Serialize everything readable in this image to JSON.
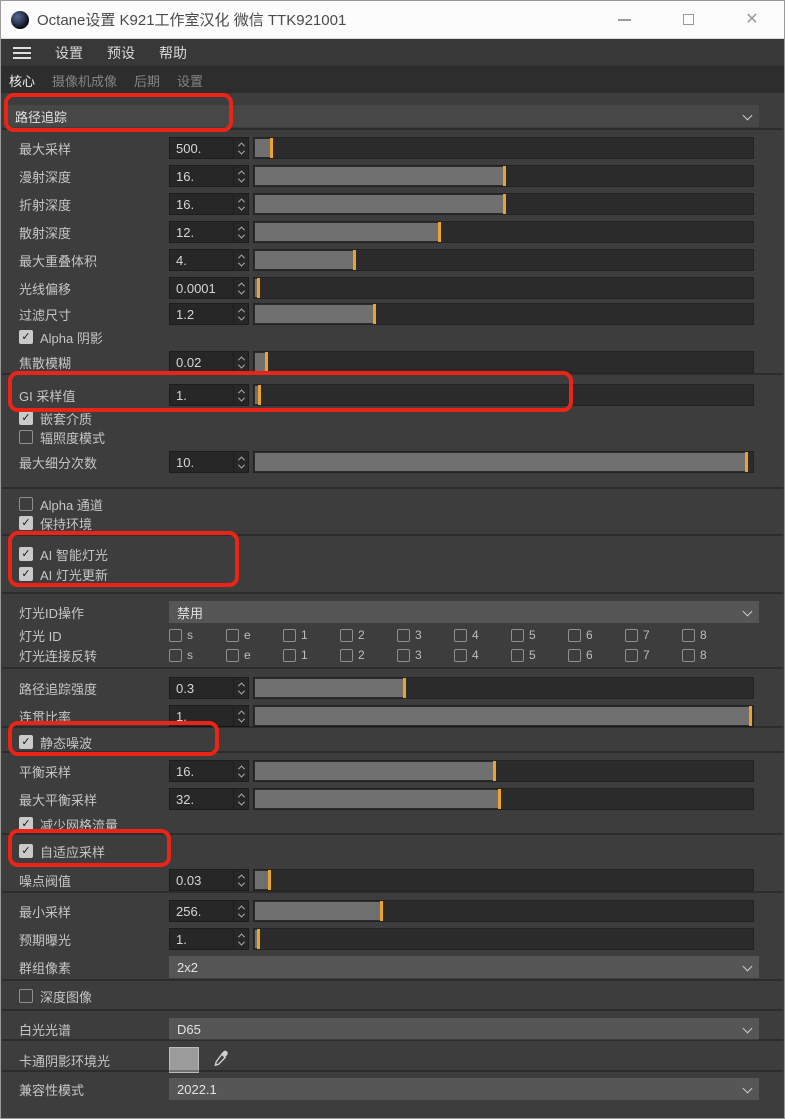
{
  "window": {
    "title": "Octane设置 K921工作室汉化 微信 TTK921001"
  },
  "menu": {
    "items": [
      "设置",
      "预设",
      "帮助"
    ]
  },
  "tabs": [
    {
      "label": "核心",
      "active": true
    },
    {
      "label": "摄像机成像",
      "active": false
    },
    {
      "label": "后期",
      "active": false
    },
    {
      "label": "设置",
      "active": false
    }
  ],
  "icons": {
    "checkmark": "✓",
    "close": "✕",
    "minimize": "–",
    "maximize": "□",
    "hamburger": "menu-bars",
    "chevron_down": "v",
    "stepper_arrows": "^v",
    "eyedropper": "dropper",
    "octane_logo": "dark-sphere"
  },
  "colors": {
    "slider_marker": "#e9a42e",
    "slider_fill": "#707070",
    "annotation_red": "#ea2517",
    "swatch_gray": "#9b9b9b"
  },
  "rows": [
    {
      "id": "kernel-type",
      "type": "section_dropdown",
      "value": "路径追踪"
    },
    {
      "id": "max-samples",
      "type": "param",
      "label": "最大采样",
      "value": "500.",
      "fill": 3.5
    },
    {
      "id": "diffuse-depth",
      "type": "param",
      "label": "漫射深度",
      "value": "16.",
      "fill": 50
    },
    {
      "id": "refraction-depth",
      "type": "param",
      "label": "折射深度",
      "value": "16.",
      "fill": 50
    },
    {
      "id": "scatter-depth",
      "type": "param",
      "label": "散射深度",
      "value": "12.",
      "fill": 37
    },
    {
      "id": "max-overlap-volume",
      "type": "param",
      "label": "最大重叠体积",
      "value": "4.",
      "fill": 20
    },
    {
      "id": "ray-offset",
      "type": "param",
      "label": "光线偏移",
      "value": "0.0001",
      "fill": 0.8
    },
    {
      "id": "filter-size",
      "type": "param",
      "label": "过滤尺寸",
      "value": "1.2",
      "fill": 24
    },
    {
      "id": "alpha-shadows",
      "type": "checkbox",
      "label": "Alpha 阴影",
      "checked": true
    },
    {
      "id": "caustic-blur",
      "type": "param",
      "label": "焦散模糊",
      "value": "0.02",
      "fill": 2.5
    },
    {
      "id": "gi-clamp",
      "type": "param",
      "label": "GI 采样值",
      "value": "1.",
      "fill": 1
    },
    {
      "id": "nested-dielectrics",
      "type": "checkbox",
      "label": "嵌套介质",
      "checked": true
    },
    {
      "id": "irradiance-mode",
      "type": "checkbox",
      "label": "辐照度模式",
      "checked": false
    },
    {
      "id": "max-subdivision",
      "type": "param",
      "label": "最大细分次数",
      "value": "10.",
      "fill": 98.5
    },
    {
      "id": "alpha-channel",
      "type": "checkbox",
      "label": "Alpha 通道",
      "checked": false
    },
    {
      "id": "keep-environment",
      "type": "checkbox",
      "label": "保持环境",
      "checked": true
    },
    {
      "id": "ai-smart-light",
      "type": "checkbox",
      "label": "AI 智能灯光",
      "checked": true
    },
    {
      "id": "ai-light-update",
      "type": "checkbox",
      "label": "AI 灯光更新",
      "checked": true
    },
    {
      "id": "light-id-action",
      "type": "dropdown",
      "label": "灯光ID操作",
      "value": "禁用"
    },
    {
      "id": "light-ids",
      "type": "checkbox_group",
      "label": "灯光 ID",
      "options": [
        "s",
        "e",
        "1",
        "2",
        "3",
        "4",
        "5",
        "6",
        "7",
        "8"
      ]
    },
    {
      "id": "light-linking-invert",
      "type": "checkbox_group",
      "label": "灯光连接反转",
      "options": [
        "s",
        "e",
        "1",
        "2",
        "3",
        "4",
        "5",
        "6",
        "7",
        "8"
      ]
    },
    {
      "id": "path-trace-power",
      "type": "param",
      "label": "路径追踪强度",
      "value": "0.3",
      "fill": 30
    },
    {
      "id": "coherent-ratio",
      "type": "param",
      "label": "连贯比率",
      "value": "1.",
      "fill": 99.6
    },
    {
      "id": "static-noise",
      "type": "checkbox",
      "label": "静态噪波",
      "checked": true
    },
    {
      "id": "parallel-samples",
      "type": "param",
      "label": "平衡采样",
      "value": "16.",
      "fill": 48
    },
    {
      "id": "max-parallel-samples",
      "type": "param",
      "label": "最大平衡采样",
      "value": "32.",
      "fill": 49
    },
    {
      "id": "reduce-net-traffic",
      "type": "checkbox",
      "label": "减少网格流量",
      "checked": true
    },
    {
      "id": "adaptive-sampling",
      "type": "checkbox",
      "label": "自适应采样",
      "checked": true
    },
    {
      "id": "noise-threshold",
      "type": "param",
      "label": "噪点阀值",
      "value": "0.03",
      "fill": 3
    },
    {
      "id": "min-samples",
      "type": "param",
      "label": "最小采样",
      "value": "256.",
      "fill": 25.5
    },
    {
      "id": "expected-exposure",
      "type": "param",
      "label": "预期曝光",
      "value": "1.",
      "fill": 0.8
    },
    {
      "id": "group-pixels",
      "type": "dropdown",
      "label": "群组像素",
      "value": "2x2"
    },
    {
      "id": "deep-image",
      "type": "checkbox",
      "label": "深度图像",
      "checked": false
    },
    {
      "id": "white-light-spectrum",
      "type": "dropdown",
      "label": "白光光谱",
      "value": "D65"
    },
    {
      "id": "toon-shading-ambient",
      "type": "color",
      "label": "卡通阴影环境光",
      "swatch": "#9b9b9b"
    },
    {
      "id": "compatibility-mode",
      "type": "dropdown",
      "label": "兼容性模式",
      "value": "2022.1"
    }
  ],
  "annotated_row_ids": [
    "kernel-type",
    "gi-clamp",
    "ai-smart-light",
    "ai-light-update",
    "static-noise",
    "adaptive-sampling"
  ]
}
